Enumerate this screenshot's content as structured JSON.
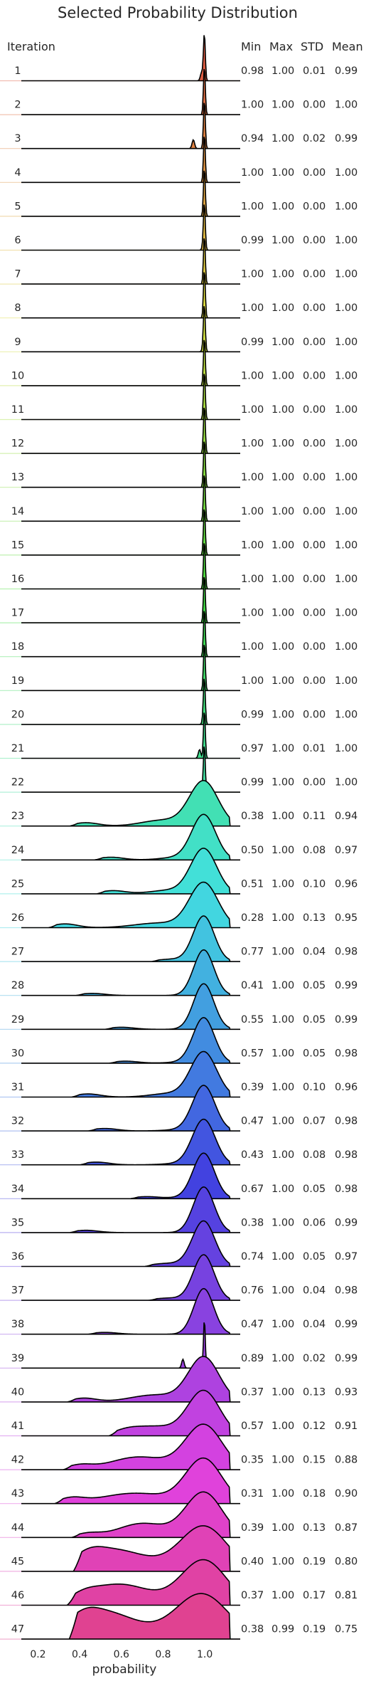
{
  "chart_data": {
    "type": "ridgeline",
    "title": "Selected Probability Distribution",
    "xlabel": "probability",
    "ylabel": "",
    "xlim": [
      0.12,
      1.17
    ],
    "xticks": [
      0.2,
      0.4,
      0.6,
      0.8,
      1.0
    ],
    "xtick_labels": [
      "0.2",
      "0.4",
      "0.6",
      "0.8",
      "1.0"
    ],
    "grid": false,
    "headers": {
      "iteration": "Iteration",
      "min": "Min",
      "max": "Max",
      "std": "STD",
      "mean": "Mean"
    },
    "rows": [
      {
        "iteration": "1",
        "min": "0.98",
        "max": "1.00",
        "std": "0.01",
        "mean": "0.99"
      },
      {
        "iteration": "2",
        "min": "1.00",
        "max": "1.00",
        "std": "0.00",
        "mean": "1.00"
      },
      {
        "iteration": "3",
        "min": "0.94",
        "max": "1.00",
        "std": "0.02",
        "mean": "0.99"
      },
      {
        "iteration": "4",
        "min": "1.00",
        "max": "1.00",
        "std": "0.00",
        "mean": "1.00"
      },
      {
        "iteration": "5",
        "min": "1.00",
        "max": "1.00",
        "std": "0.00",
        "mean": "1.00"
      },
      {
        "iteration": "6",
        "min": "0.99",
        "max": "1.00",
        "std": "0.00",
        "mean": "1.00"
      },
      {
        "iteration": "7",
        "min": "1.00",
        "max": "1.00",
        "std": "0.00",
        "mean": "1.00"
      },
      {
        "iteration": "8",
        "min": "1.00",
        "max": "1.00",
        "std": "0.00",
        "mean": "1.00"
      },
      {
        "iteration": "9",
        "min": "0.99",
        "max": "1.00",
        "std": "0.00",
        "mean": "1.00"
      },
      {
        "iteration": "10",
        "min": "1.00",
        "max": "1.00",
        "std": "0.00",
        "mean": "1.00"
      },
      {
        "iteration": "11",
        "min": "1.00",
        "max": "1.00",
        "std": "0.00",
        "mean": "1.00"
      },
      {
        "iteration": "12",
        "min": "1.00",
        "max": "1.00",
        "std": "0.00",
        "mean": "1.00"
      },
      {
        "iteration": "13",
        "min": "1.00",
        "max": "1.00",
        "std": "0.00",
        "mean": "1.00"
      },
      {
        "iteration": "14",
        "min": "1.00",
        "max": "1.00",
        "std": "0.00",
        "mean": "1.00"
      },
      {
        "iteration": "15",
        "min": "1.00",
        "max": "1.00",
        "std": "0.00",
        "mean": "1.00"
      },
      {
        "iteration": "16",
        "min": "1.00",
        "max": "1.00",
        "std": "0.00",
        "mean": "1.00"
      },
      {
        "iteration": "17",
        "min": "1.00",
        "max": "1.00",
        "std": "0.00",
        "mean": "1.00"
      },
      {
        "iteration": "18",
        "min": "1.00",
        "max": "1.00",
        "std": "0.00",
        "mean": "1.00"
      },
      {
        "iteration": "19",
        "min": "1.00",
        "max": "1.00",
        "std": "0.00",
        "mean": "1.00"
      },
      {
        "iteration": "20",
        "min": "0.99",
        "max": "1.00",
        "std": "0.00",
        "mean": "1.00"
      },
      {
        "iteration": "21",
        "min": "0.97",
        "max": "1.00",
        "std": "0.01",
        "mean": "1.00"
      },
      {
        "iteration": "22",
        "min": "0.99",
        "max": "1.00",
        "std": "0.00",
        "mean": "1.00"
      },
      {
        "iteration": "23",
        "min": "0.38",
        "max": "1.00",
        "std": "0.11",
        "mean": "0.94"
      },
      {
        "iteration": "24",
        "min": "0.50",
        "max": "1.00",
        "std": "0.08",
        "mean": "0.97"
      },
      {
        "iteration": "25",
        "min": "0.51",
        "max": "1.00",
        "std": "0.10",
        "mean": "0.96"
      },
      {
        "iteration": "26",
        "min": "0.28",
        "max": "1.00",
        "std": "0.13",
        "mean": "0.95"
      },
      {
        "iteration": "27",
        "min": "0.77",
        "max": "1.00",
        "std": "0.04",
        "mean": "0.98"
      },
      {
        "iteration": "28",
        "min": "0.41",
        "max": "1.00",
        "std": "0.05",
        "mean": "0.99"
      },
      {
        "iteration": "29",
        "min": "0.55",
        "max": "1.00",
        "std": "0.05",
        "mean": "0.99"
      },
      {
        "iteration": "30",
        "min": "0.57",
        "max": "1.00",
        "std": "0.05",
        "mean": "0.98"
      },
      {
        "iteration": "31",
        "min": "0.39",
        "max": "1.00",
        "std": "0.10",
        "mean": "0.96"
      },
      {
        "iteration": "32",
        "min": "0.47",
        "max": "1.00",
        "std": "0.07",
        "mean": "0.98"
      },
      {
        "iteration": "33",
        "min": "0.43",
        "max": "1.00",
        "std": "0.08",
        "mean": "0.98"
      },
      {
        "iteration": "34",
        "min": "0.67",
        "max": "1.00",
        "std": "0.05",
        "mean": "0.98"
      },
      {
        "iteration": "35",
        "min": "0.38",
        "max": "1.00",
        "std": "0.06",
        "mean": "0.99"
      },
      {
        "iteration": "36",
        "min": "0.74",
        "max": "1.00",
        "std": "0.05",
        "mean": "0.97"
      },
      {
        "iteration": "37",
        "min": "0.76",
        "max": "1.00",
        "std": "0.04",
        "mean": "0.98"
      },
      {
        "iteration": "38",
        "min": "0.47",
        "max": "1.00",
        "std": "0.04",
        "mean": "0.99"
      },
      {
        "iteration": "39",
        "min": "0.89",
        "max": "1.00",
        "std": "0.02",
        "mean": "0.99"
      },
      {
        "iteration": "40",
        "min": "0.37",
        "max": "1.00",
        "std": "0.13",
        "mean": "0.93"
      },
      {
        "iteration": "41",
        "min": "0.57",
        "max": "1.00",
        "std": "0.12",
        "mean": "0.91"
      },
      {
        "iteration": "42",
        "min": "0.35",
        "max": "1.00",
        "std": "0.15",
        "mean": "0.88"
      },
      {
        "iteration": "43",
        "min": "0.31",
        "max": "1.00",
        "std": "0.18",
        "mean": "0.90"
      },
      {
        "iteration": "44",
        "min": "0.39",
        "max": "1.00",
        "std": "0.13",
        "mean": "0.87"
      },
      {
        "iteration": "45",
        "min": "0.40",
        "max": "1.00",
        "std": "0.19",
        "mean": "0.80"
      },
      {
        "iteration": "46",
        "min": "0.37",
        "max": "1.00",
        "std": "0.17",
        "mean": "0.81"
      },
      {
        "iteration": "47",
        "min": "0.38",
        "max": "0.99",
        "std": "0.19",
        "mean": "0.75"
      }
    ]
  }
}
